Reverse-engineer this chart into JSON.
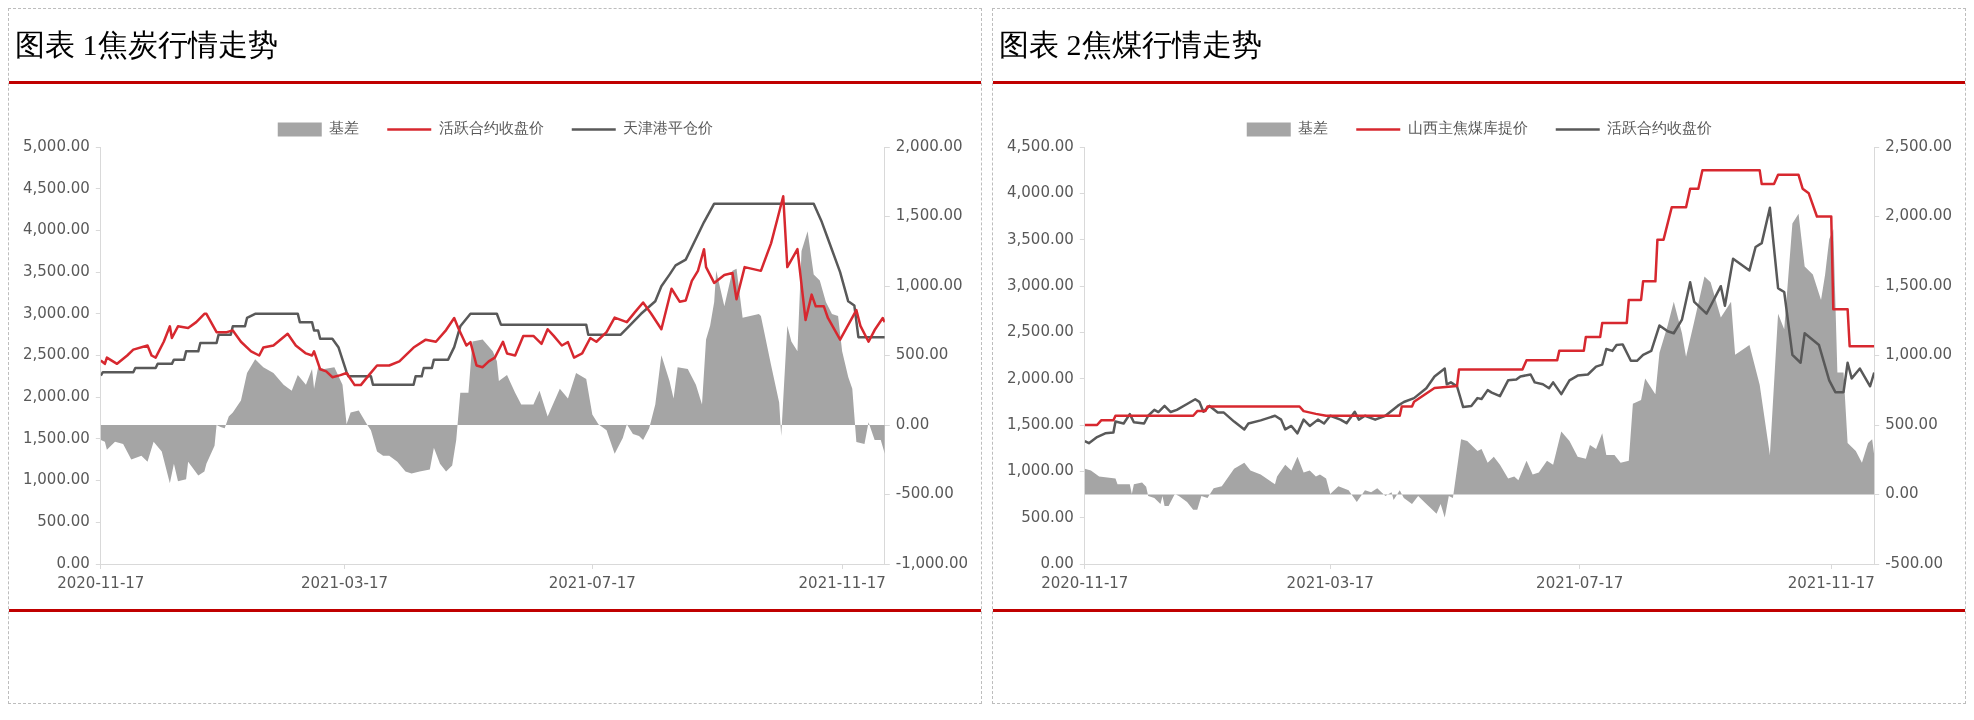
{
  "chart_data": [
    {
      "type": "line",
      "title": "图表 1焦炭行情走势",
      "legend": "top",
      "xlim": [
        "2020-11-17",
        "2021-12-08"
      ],
      "xticks": [
        "2020-11-17",
        "2021-03-17",
        "2021-07-17",
        "2021-11-17"
      ],
      "ylim": [
        0,
        5000
      ],
      "yticks": [
        {
          "value": 0,
          "label": "0.00"
        },
        {
          "value": 500,
          "label": "500.00"
        },
        {
          "value": 1000,
          "label": "1,000.00"
        },
        {
          "value": 1500,
          "label": "1,500.00"
        },
        {
          "value": 2000,
          "label": "2,000.00"
        },
        {
          "value": 2500,
          "label": "2,500.00"
        },
        {
          "value": 3000,
          "label": "3,000.00"
        },
        {
          "value": 3500,
          "label": "3,500.00"
        },
        {
          "value": 4000,
          "label": "4,000.00"
        },
        {
          "value": 4500,
          "label": "4,500.00"
        },
        {
          "value": 5000,
          "label": "5,000.00"
        }
      ],
      "y2lim": [
        -1000,
        2000
      ],
      "y2ticks": [
        {
          "value": -1000,
          "label": "-1,000.00"
        },
        {
          "value": -500,
          "label": "-500.00"
        },
        {
          "value": 0,
          "label": "0.00"
        },
        {
          "value": 500,
          "label": "500.00"
        },
        {
          "value": 1000,
          "label": "1,000.00"
        },
        {
          "value": 1500,
          "label": "1,500.00"
        },
        {
          "value": 2000,
          "label": "2,000.00"
        }
      ],
      "series": [
        {
          "name": "基差",
          "type": "area",
          "axis": "y2",
          "color": "#a5a5a5",
          "x": [
            "2020-11-17",
            "2020-11-19",
            "2020-11-20",
            "2020-11-24",
            "2020-11-28",
            "2020-12-02",
            "2020-12-07",
            "2020-12-10",
            "2020-12-13",
            "2020-12-17",
            "2020-12-21",
            "2020-12-23",
            "2020-12-25",
            "2020-12-29",
            "2020-12-30",
            "2021-01-04",
            "2021-01-07",
            "2021-01-08",
            "2021-01-12",
            "2021-01-13",
            "2021-01-15",
            "2021-01-17",
            "2021-01-19",
            "2021-01-21",
            "2021-01-25",
            "2021-01-28",
            "2021-02-01",
            "2021-02-05",
            "2021-02-10",
            "2021-02-15",
            "2021-02-19",
            "2021-02-22",
            "2021-02-26",
            "2021-03-01",
            "2021-03-02",
            "2021-03-04",
            "2021-03-07",
            "2021-03-12",
            "2021-03-16",
            "2021-03-18",
            "2021-03-20",
            "2021-03-24",
            "2021-03-28",
            "2021-03-30",
            "2021-04-02",
            "2021-04-05",
            "2021-04-08",
            "2021-04-12",
            "2021-04-16",
            "2021-04-19",
            "2021-04-23",
            "2021-04-28",
            "2021-04-30",
            "2021-05-03",
            "2021-05-06",
            "2021-05-09",
            "2021-05-11",
            "2021-05-13",
            "2021-05-17",
            "2021-05-19",
            "2021-05-24",
            "2021-05-29",
            "2021-05-31",
            "2021-06-01",
            "2021-06-05",
            "2021-06-09",
            "2021-06-12",
            "2021-06-18",
            "2021-06-21",
            "2021-06-25",
            "2021-07-01",
            "2021-07-05",
            "2021-07-09",
            "2021-07-14",
            "2021-07-17",
            "2021-07-20",
            "2021-07-24",
            "2021-07-28",
            "2021-08-01",
            "2021-08-03",
            "2021-08-06",
            "2021-08-09",
            "2021-08-11",
            "2021-08-14",
            "2021-08-17",
            "2021-08-20",
            "2021-08-24",
            "2021-08-26",
            "2021-08-28",
            "2021-09-02",
            "2021-09-06",
            "2021-09-09",
            "2021-09-11",
            "2021-09-13",
            "2021-09-15",
            "2021-09-16",
            "2021-09-20",
            "2021-09-24",
            "2021-09-26",
            "2021-09-29",
            "2021-10-07",
            "2021-10-08",
            "2021-10-13",
            "2021-10-17",
            "2021-10-18",
            "2021-10-21",
            "2021-10-23",
            "2021-10-26",
            "2021-10-28",
            "2021-10-31",
            "2021-11-03",
            "2021-11-06",
            "2021-11-09",
            "2021-11-12",
            "2021-11-15",
            "2021-11-17",
            "2021-11-20",
            "2021-11-22",
            "2021-11-24",
            "2021-11-28",
            "2021-11-30",
            "2021-12-03",
            "2021-12-06",
            "2021-12-08"
          ],
          "values": [
            -108,
            -120,
            -178,
            -120,
            -136,
            -249,
            -221,
            -264,
            -120,
            -190,
            -419,
            -278,
            -405,
            -391,
            -264,
            -363,
            -334,
            -278,
            -150,
            0,
            -15,
            -23,
            62,
            90,
            176,
            374,
            473,
            416,
            374,
            289,
            246,
            360,
            289,
            402,
            260,
            416,
            402,
            416,
            289,
            6,
            90,
            105,
            6,
            -37,
            -190,
            -221,
            -221,
            -264,
            -334,
            -349,
            -334,
            -320,
            -164,
            -278,
            -334,
            -292,
            -108,
            232,
            232,
            600,
            615,
            530,
            459,
            317,
            360,
            232,
            147,
            147,
            246,
            62,
            260,
            190,
            374,
            331,
            76,
            6,
            -37,
            -207,
            -93,
            6,
            -65,
            -79,
            -108,
            -23,
            147,
            501,
            317,
            190,
            416,
            402,
            289,
            147,
            615,
            714,
            884,
            1110,
            855,
            1110,
            1125,
            771,
            799,
            785,
            431,
            161,
            -79,
            714,
            600,
            530,
            1252,
            1394,
            1082,
            1040,
            884,
            799,
            785,
            530,
            346,
            260,
            -122,
            -136,
            20,
            -108,
            -108,
            -207
          ]
        },
        {
          "name": "活跃合约收盘价",
          "type": "line",
          "color": "#d7282f",
          "x": [
            "2020-11-17",
            "2020-11-19",
            "2020-11-20",
            "2020-11-25",
            "2020-11-30",
            "2020-12-03",
            "2020-12-10",
            "2020-12-12",
            "2020-12-14",
            "2020-12-18",
            "2020-12-21",
            "2020-12-22",
            "2020-12-25",
            "2020-12-30",
            "2021-01-03",
            "2021-01-07",
            "2021-01-08",
            "2021-01-13",
            "2021-01-18",
            "2021-01-21",
            "2021-01-25",
            "2021-01-30",
            "2021-02-03",
            "2021-02-05",
            "2021-02-10",
            "2021-02-17",
            "2021-02-21",
            "2021-02-26",
            "2021-03-01",
            "2021-03-02",
            "2021-03-05",
            "2021-03-08",
            "2021-03-11",
            "2021-03-15",
            "2021-03-18",
            "2021-03-22",
            "2021-03-25",
            "2021-03-29",
            "2021-04-02",
            "2021-04-08",
            "2021-04-13",
            "2021-04-20",
            "2021-04-26",
            "2021-05-01",
            "2021-05-06",
            "2021-05-10",
            "2021-05-12",
            "2021-05-16",
            "2021-05-18",
            "2021-05-21",
            "2021-05-24",
            "2021-05-27",
            "2021-05-30",
            "2021-06-03",
            "2021-06-05",
            "2021-06-09",
            "2021-06-13",
            "2021-06-18",
            "2021-06-22",
            "2021-06-25",
            "2021-06-28",
            "2021-07-02",
            "2021-07-05",
            "2021-07-08",
            "2021-07-12",
            "2021-07-16",
            "2021-07-19",
            "2021-07-24",
            "2021-07-28",
            "2021-08-03",
            "2021-08-07",
            "2021-08-11",
            "2021-08-15",
            "2021-08-20",
            "2021-08-25",
            "2021-08-29",
            "2021-09-01",
            "2021-09-04",
            "2021-09-07",
            "2021-09-10",
            "2021-09-11",
            "2021-09-15",
            "2021-09-20",
            "2021-09-24",
            "2021-09-26",
            "2021-09-30",
            "2021-10-08",
            "2021-10-13",
            "2021-10-16",
            "2021-10-19",
            "2021-10-21",
            "2021-10-26",
            "2021-10-30",
            "2021-11-02",
            "2021-11-04",
            "2021-11-08",
            "2021-11-10",
            "2021-11-16",
            "2021-11-24",
            "2021-11-26",
            "2021-11-30",
            "2021-12-03",
            "2021-12-07",
            "2021-12-08"
          ],
          "values": [
            2440,
            2400,
            2475,
            2400,
            2500,
            2570,
            2620,
            2500,
            2475,
            2665,
            2850,
            2710,
            2850,
            2830,
            2900,
            3000,
            3000,
            2780,
            2780,
            2800,
            2665,
            2550,
            2500,
            2595,
            2620,
            2760,
            2620,
            2525,
            2500,
            2550,
            2335,
            2310,
            2240,
            2265,
            2290,
            2145,
            2145,
            2265,
            2380,
            2380,
            2430,
            2595,
            2690,
            2665,
            2805,
            2950,
            2830,
            2620,
            2660,
            2380,
            2360,
            2430,
            2475,
            2665,
            2525,
            2500,
            2735,
            2735,
            2640,
            2815,
            2735,
            2620,
            2660,
            2475,
            2525,
            2710,
            2665,
            2780,
            2955,
            2900,
            3020,
            3135,
            3000,
            2815,
            3300,
            3145,
            3160,
            3395,
            3515,
            3775,
            3560,
            3370,
            3465,
            3490,
            3175,
            3560,
            3515,
            3845,
            4125,
            4410,
            3560,
            3775,
            2925,
            3230,
            3090,
            3090,
            2950,
            2690,
            3045,
            2855,
            2665,
            2805,
            2950,
            2900
          ]
        },
        {
          "name": "天津港平仓价",
          "type": "line",
          "color": "#595959",
          "x": [
            "2020-11-17",
            "2020-11-18",
            "2020-12-03",
            "2020-12-04",
            "2020-12-14",
            "2020-12-15",
            "2020-12-22",
            "2020-12-23",
            "2020-12-28",
            "2020-12-29",
            "2021-01-04",
            "2021-01-05",
            "2021-01-13",
            "2021-01-14",
            "2021-01-20",
            "2021-01-21",
            "2021-01-27",
            "2021-01-28",
            "2021-02-01",
            "2021-02-22",
            "2021-02-23",
            "2021-03-01",
            "2021-03-02",
            "2021-03-04",
            "2021-03-05",
            "2021-03-11",
            "2021-03-14",
            "2021-03-18",
            "2021-03-19",
            "2021-03-30",
            "2021-03-31",
            "2021-04-20",
            "2021-04-21",
            "2021-04-24",
            "2021-04-25",
            "2021-04-29",
            "2021-04-30",
            "2021-05-07",
            "2021-05-10",
            "2021-05-13",
            "2021-05-18",
            "2021-05-31",
            "2021-06-02",
            "2021-07-14",
            "2021-07-15",
            "2021-07-31",
            "2021-08-04",
            "2021-08-10",
            "2021-08-17",
            "2021-08-20",
            "2021-08-24",
            "2021-08-27",
            "2021-09-01",
            "2021-09-06",
            "2021-09-10",
            "2021-09-15",
            "2021-11-03",
            "2021-11-07",
            "2021-11-10",
            "2021-11-16",
            "2021-11-20",
            "2021-11-23",
            "2021-11-25",
            "2021-12-08"
          ],
          "values": [
            2260,
            2300,
            2300,
            2350,
            2350,
            2400,
            2400,
            2450,
            2450,
            2550,
            2550,
            2650,
            2650,
            2750,
            2750,
            2850,
            2850,
            2950,
            3000,
            3000,
            2900,
            2900,
            2800,
            2800,
            2700,
            2700,
            2600,
            2300,
            2250,
            2250,
            2150,
            2150,
            2250,
            2250,
            2350,
            2350,
            2450,
            2450,
            2600,
            2850,
            3000,
            3000,
            2870,
            2870,
            2750,
            2750,
            2850,
            3000,
            3150,
            3330,
            3470,
            3580,
            3650,
            3900,
            4100,
            4320,
            4320,
            4100,
            3900,
            3500,
            3150,
            3100,
            2720,
            2720
          ]
        }
      ]
    },
    {
      "type": "line",
      "title": "图表 2焦煤行情走势",
      "legend": "top",
      "xlim": [
        "2020-11-17",
        "2021-12-08"
      ],
      "xticks": [
        "2020-11-17",
        "2021-03-17",
        "2021-07-17",
        "2021-11-17"
      ],
      "ylim": [
        0,
        4500
      ],
      "yticks": [
        {
          "value": 0,
          "label": "0.00"
        },
        {
          "value": 500,
          "label": "500.00"
        },
        {
          "value": 1000,
          "label": "1,000.00"
        },
        {
          "value": 1500,
          "label": "1,500.00"
        },
        {
          "value": 2000,
          "label": "2,000.00"
        },
        {
          "value": 2500,
          "label": "2,500.00"
        },
        {
          "value": 3000,
          "label": "3,000.00"
        },
        {
          "value": 3500,
          "label": "3,500.00"
        },
        {
          "value": 4000,
          "label": "4,000.00"
        },
        {
          "value": 4500,
          "label": "4,500.00"
        }
      ],
      "y2lim": [
        -500,
        2500
      ],
      "y2ticks": [
        {
          "value": -500,
          "label": "-500.00"
        },
        {
          "value": 0,
          "label": "0.00"
        },
        {
          "value": 500,
          "label": "500.00"
        },
        {
          "value": 1000,
          "label": "1,000.00"
        },
        {
          "value": 1500,
          "label": "1,500.00"
        },
        {
          "value": 2000,
          "label": "2,000.00"
        },
        {
          "value": 2500,
          "label": "2,500.00"
        }
      ],
      "series": [
        {
          "name": "基差",
          "type": "area",
          "axis": "y2",
          "color": "#a5a5a5",
          "x": [
            "2020-11-17",
            "2020-11-20",
            "2020-11-24",
            "2020-12-02",
            "2020-12-03",
            "2020-12-09",
            "2020-12-10",
            "2020-12-11",
            "2020-12-15",
            "2020-12-17",
            "2020-12-18",
            "2020-12-21",
            "2020-12-24",
            "2020-12-25",
            "2020-12-26",
            "2020-12-28",
            "2020-12-31",
            "2021-01-02",
            "2021-01-06",
            "2021-01-09",
            "2021-01-11",
            "2021-01-13",
            "2021-01-16",
            "2021-01-19",
            "2021-01-23",
            "2021-01-29",
            "2021-02-03",
            "2021-02-06",
            "2021-02-11",
            "2021-02-18",
            "2021-02-19",
            "2021-02-23",
            "2021-02-26",
            "2021-03-01",
            "2021-03-04",
            "2021-03-07",
            "2021-03-10",
            "2021-03-12",
            "2021-03-15",
            "2021-03-17",
            "2021-03-21",
            "2021-03-26",
            "2021-03-30",
            "2021-04-03",
            "2021-04-06",
            "2021-04-09",
            "2021-04-13",
            "2021-04-16",
            "2021-04-17",
            "2021-04-20",
            "2021-04-22",
            "2021-04-26",
            "2021-04-29",
            "2021-05-03",
            "2021-05-08",
            "2021-05-10",
            "2021-05-12",
            "2021-05-14",
            "2021-05-16",
            "2021-05-20",
            "2021-05-23",
            "2021-05-28",
            "2021-05-30",
            "2021-06-02",
            "2021-06-05",
            "2021-06-08",
            "2021-06-12",
            "2021-06-15",
            "2021-06-17",
            "2021-06-21",
            "2021-06-24",
            "2021-06-27",
            "2021-07-01",
            "2021-07-04",
            "2021-07-08",
            "2021-07-12",
            "2021-07-16",
            "2021-07-20",
            "2021-07-22",
            "2021-07-25",
            "2021-07-28",
            "2021-07-30",
            "2021-08-03",
            "2021-08-06",
            "2021-08-10",
            "2021-08-12",
            "2021-08-16",
            "2021-08-18",
            "2021-08-23",
            "2021-08-25",
            "2021-08-29",
            "2021-09-01",
            "2021-09-05",
            "2021-09-07",
            "2021-09-11",
            "2021-09-16",
            "2021-09-19",
            "2021-09-24",
            "2021-09-29",
            "2021-10-01",
            "2021-10-08",
            "2021-10-13",
            "2021-10-18",
            "2021-10-22",
            "2021-10-25",
            "2021-10-29",
            "2021-11-01",
            "2021-11-04",
            "2021-11-08",
            "2021-11-12",
            "2021-11-14",
            "2021-11-16",
            "2021-11-18",
            "2021-11-20",
            "2021-11-23",
            "2021-11-25",
            "2021-11-29",
            "2021-12-02",
            "2021-12-05",
            "2021-12-07",
            "2021-12-08"
          ],
          "values": [
            186,
            172,
            130,
            116,
            73,
            73,
            3,
            73,
            87,
            56,
            -11,
            -25,
            -68,
            -11,
            -82,
            -82,
            3,
            -11,
            -54,
            -110,
            -110,
            -11,
            -25,
            45,
            59,
            186,
            229,
            172,
            144,
            73,
            130,
            214,
            172,
            271,
            158,
            172,
            130,
            144,
            116,
            3,
            59,
            31,
            -54,
            31,
            17,
            45,
            -11,
            17,
            -40,
            31,
            -25,
            -68,
            -11,
            -68,
            -138,
            -68,
            -166,
            -11,
            -25,
            398,
            384,
            313,
            327,
            229,
            271,
            214,
            116,
            130,
            102,
            243,
            144,
            158,
            243,
            214,
            454,
            384,
            271,
            257,
            356,
            327,
            440,
            285,
            285,
            229,
            243,
            652,
            680,
            835,
            722,
            1019,
            1216,
            1386,
            1160,
            991,
            1244,
            1569,
            1527,
            1273,
            1386,
            1005,
            1075,
            790,
            285,
            1301,
            1188,
            1950,
            2020,
            1640,
            1583,
            1400,
            1583,
            1837,
            1908,
            878,
            878,
            370,
            313,
            229,
            370,
            398,
            285
          ]
        },
        {
          "name": "山西主焦煤库提价",
          "type": "line",
          "color": "#d7282f",
          "x": [
            "2020-11-17",
            "2020-11-23",
            "2020-11-25",
            "2020-12-01",
            "2020-12-02",
            "2021-01-09",
            "2021-01-11",
            "2021-01-15",
            "2021-01-16",
            "2021-03-02",
            "2021-03-04",
            "2021-03-10",
            "2021-03-15",
            "2021-04-20",
            "2021-04-21",
            "2021-04-26",
            "2021-04-27",
            "2021-05-07",
            "2021-05-18",
            "2021-05-19",
            "2021-06-19",
            "2021-06-21",
            "2021-07-06",
            "2021-07-07",
            "2021-07-19",
            "2021-07-20",
            "2021-07-27",
            "2021-07-28",
            "2021-08-09",
            "2021-08-10",
            "2021-08-16",
            "2021-08-17",
            "2021-08-23",
            "2021-08-24",
            "2021-08-27",
            "2021-08-31",
            "2021-09-07",
            "2021-09-09",
            "2021-09-13",
            "2021-09-15",
            "2021-10-13",
            "2021-10-14",
            "2021-10-20",
            "2021-10-22",
            "2021-11-01",
            "2021-11-03",
            "2021-11-06",
            "2021-11-10",
            "2021-11-17",
            "2021-11-18",
            "2021-11-25",
            "2021-11-26",
            "2021-12-08"
          ],
          "values": [
            1500,
            1500,
            1550,
            1550,
            1600,
            1600,
            1650,
            1650,
            1700,
            1700,
            1650,
            1620,
            1600,
            1600,
            1700,
            1700,
            1750,
            1900,
            1920,
            2100,
            2100,
            2200,
            2200,
            2300,
            2300,
            2450,
            2450,
            2600,
            2600,
            2850,
            2850,
            3050,
            3050,
            3500,
            3500,
            3850,
            3850,
            4050,
            4050,
            4250,
            4250,
            4100,
            4100,
            4200,
            4200,
            4050,
            4000,
            3750,
            3750,
            2750,
            2750,
            2350,
            2350
          ]
        },
        {
          "name": "活跃合约收盘价",
          "type": "line",
          "color": "#595959",
          "x": [
            "2020-11-17",
            "2020-11-19",
            "2020-11-23",
            "2020-11-27",
            "2020-12-01",
            "2020-12-02",
            "2020-12-06",
            "2020-12-09",
            "2020-12-11",
            "2020-12-16",
            "2020-12-18",
            "2020-12-21",
            "2020-12-23",
            "2020-12-26",
            "2020-12-29",
            "2021-01-01",
            "2021-01-06",
            "2021-01-10",
            "2021-01-12",
            "2021-01-14",
            "2021-01-17",
            "2021-01-21",
            "2021-01-24",
            "2021-01-29",
            "2021-02-03",
            "2021-02-05",
            "2021-02-11",
            "2021-02-18",
            "2021-02-21",
            "2021-02-23",
            "2021-02-26",
            "2021-03-01",
            "2021-03-04",
            "2021-03-07",
            "2021-03-11",
            "2021-03-14",
            "2021-03-17",
            "2021-03-22",
            "2021-03-25",
            "2021-03-29",
            "2021-03-31",
            "2021-04-03",
            "2021-04-08",
            "2021-04-13",
            "2021-04-19",
            "2021-04-22",
            "2021-04-27",
            "2021-05-03",
            "2021-05-07",
            "2021-05-12",
            "2021-05-13",
            "2021-05-15",
            "2021-05-18",
            "2021-05-21",
            "2021-05-25",
            "2021-05-28",
            "2021-05-30",
            "2021-06-02",
            "2021-06-04",
            "2021-06-08",
            "2021-06-12",
            "2021-06-16",
            "2021-06-18",
            "2021-06-23",
            "2021-06-25",
            "2021-06-29",
            "2021-07-02",
            "2021-07-04",
            "2021-07-08",
            "2021-07-12",
            "2021-07-16",
            "2021-07-21",
            "2021-07-25",
            "2021-07-28",
            "2021-07-30",
            "2021-08-02",
            "2021-08-04",
            "2021-08-07",
            "2021-08-11",
            "2021-08-14",
            "2021-08-17",
            "2021-08-21",
            "2021-08-25",
            "2021-08-29",
            "2021-09-01",
            "2021-09-05",
            "2021-09-09",
            "2021-09-11",
            "2021-09-17",
            "2021-09-22",
            "2021-09-24",
            "2021-09-26",
            "2021-09-30",
            "2021-10-08",
            "2021-10-11",
            "2021-10-14",
            "2021-10-18",
            "2021-10-22",
            "2021-10-25",
            "2021-10-29",
            "2021-11-02",
            "2021-11-04",
            "2021-11-11",
            "2021-11-16",
            "2021-11-19",
            "2021-11-23",
            "2021-11-25",
            "2021-11-27",
            "2021-12-01",
            "2021-12-06",
            "2021-12-08"
          ],
          "values": [
            1325,
            1304,
            1370,
            1410,
            1420,
            1537,
            1516,
            1618,
            1530,
            1516,
            1600,
            1664,
            1640,
            1706,
            1640,
            1664,
            1727,
            1778,
            1750,
            1643,
            1706,
            1634,
            1634,
            1537,
            1452,
            1516,
            1550,
            1600,
            1558,
            1452,
            1490,
            1410,
            1558,
            1490,
            1558,
            1516,
            1600,
            1558,
            1520,
            1643,
            1558,
            1600,
            1558,
            1600,
            1706,
            1748,
            1790,
            1897,
            2024,
            2109,
            1939,
            1960,
            1918,
            1694,
            1706,
            1790,
            1780,
            1876,
            1850,
            1812,
            1982,
            1990,
            2024,
            2045,
            1960,
            1939,
            1897,
            1960,
            1833,
            1982,
            2033,
            2045,
            2130,
            2151,
            2320,
            2300,
            2363,
            2370,
            2193,
            2193,
            2257,
            2300,
            2574,
            2511,
            2490,
            2638,
            3040,
            2828,
            2701,
            2913,
            2998,
            2786,
            3294,
            3167,
            3421,
            3463,
            3844,
            2976,
            2935,
            2257,
            2172,
            2490,
            2363,
            1982,
            1854,
            1854,
            2172,
            2003,
            2109,
            1918,
            2066
          ]
        }
      ]
    }
  ]
}
